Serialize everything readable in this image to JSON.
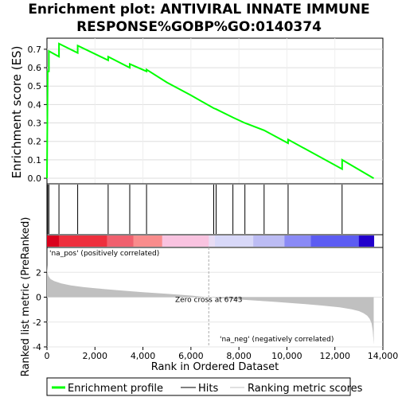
{
  "title_line1": "Enrichment plot: ANTIVIRAL INNATE IMMUNE",
  "title_line2": "RESPONSE%GOBP%GO:0140374",
  "chart_data": {
    "type": "line",
    "title": "Enrichment plot: ANTIVIRAL INNATE IMMUNE RESPONSE%GOBP%GO:0140374",
    "es_panel": {
      "ylabel": "Enrichment score (ES)",
      "ylim": [
        -0.03,
        0.76
      ],
      "yticks": [
        0.0,
        0.1,
        0.2,
        0.3,
        0.4,
        0.5,
        0.6,
        0.7
      ],
      "ytick_labels": [
        "0.0",
        "0.1",
        "0.2",
        "0.3",
        "0.4",
        "0.5",
        "0.6",
        "0.7"
      ],
      "series_color": "#00ff00",
      "x": [
        0,
        30,
        31,
        80,
        81,
        500,
        501,
        1280,
        1281,
        2550,
        2551,
        3450,
        3451,
        4150,
        4151,
        5000,
        6000,
        6950,
        6951,
        7050,
        7051,
        7750,
        7751,
        8250,
        8251,
        9050,
        9051,
        10050,
        10051,
        12300,
        12301,
        13620
      ],
      "y": [
        0.0,
        0.56,
        0.58,
        0.58,
        0.69,
        0.66,
        0.73,
        0.68,
        0.72,
        0.64,
        0.66,
        0.6,
        0.62,
        0.58,
        0.59,
        0.52,
        0.45,
        0.38,
        0.38,
        0.375,
        0.375,
        0.33,
        0.33,
        0.3,
        0.3,
        0.26,
        0.26,
        0.19,
        0.21,
        0.05,
        0.1,
        0.0
      ]
    },
    "hits": [
      30,
      80,
      500,
      1280,
      2550,
      3450,
      4150,
      6950,
      7050,
      7750,
      8250,
      9050,
      10050,
      12300
    ],
    "ranked_panel": {
      "ylabel": "Ranked list metric (PreRanked)",
      "xlabel": "Rank in Ordered Dataset",
      "xlim": [
        0,
        14000
      ],
      "ylim": [
        -4,
        4
      ],
      "xticks": [
        0,
        2000,
        4000,
        6000,
        8000,
        10000,
        12000,
        14000
      ],
      "xtick_labels": [
        "0",
        "2,000",
        "4,000",
        "6,000",
        "8,000",
        "10,000",
        "12,000",
        "14,000"
      ],
      "yticks": [
        2,
        0,
        -2,
        -4
      ],
      "ytick_labels": [
        "2",
        "0",
        "-2",
        "-4"
      ],
      "n_genes": 13620,
      "zero_cross": 6743,
      "zero_cross_label": "Zero cross at 6743",
      "pos_label": "'na_pos' (positively correlated)",
      "neg_label": "'na_neg' (negatively correlated)",
      "pos_color": "#ff0000",
      "neg_color": "#0000ff",
      "curve_x": [
        0,
        20,
        60,
        150,
        300,
        600,
        1000,
        1500,
        2000,
        3000,
        4000,
        5000,
        6000,
        6743,
        7500,
        8500,
        9500,
        10500,
        11500,
        12200,
        12700,
        13000,
        13200,
        13350,
        13450,
        13530,
        13580,
        13620
      ],
      "curve_y": [
        2.6,
        2.0,
        1.7,
        1.45,
        1.3,
        1.1,
        0.95,
        0.82,
        0.72,
        0.55,
        0.4,
        0.27,
        0.13,
        0.0,
        -0.12,
        -0.25,
        -0.38,
        -0.52,
        -0.68,
        -0.82,
        -0.98,
        -1.12,
        -1.3,
        -1.5,
        -1.75,
        -2.1,
        -2.7,
        -3.8
      ]
    },
    "colorbar_stops": [
      {
        "x": 0,
        "color": "#d9001c"
      },
      {
        "x": 500,
        "color": "#ee2f3d"
      },
      {
        "x": 2500,
        "color": "#f0606e"
      },
      {
        "x": 3600,
        "color": "#f98c8c"
      },
      {
        "x": 4800,
        "color": "#f9c3e0"
      },
      {
        "x": 6743,
        "color": "#e8dcf4"
      },
      {
        "x": 7000,
        "color": "#d8d8f8"
      },
      {
        "x": 8600,
        "color": "#bcbcf4"
      },
      {
        "x": 9900,
        "color": "#8a8af6"
      },
      {
        "x": 11000,
        "color": "#5c5cf2"
      },
      {
        "x": 13000,
        "color": "#2200cc"
      },
      {
        "x": 13620,
        "color": "#2200cc"
      }
    ],
    "legend": [
      {
        "label": "Enrichment profile",
        "color": "#00ff00"
      },
      {
        "label": "Hits",
        "color": "#000000"
      },
      {
        "label": "Ranking metric scores",
        "color": "#c0c0c0"
      }
    ]
  }
}
